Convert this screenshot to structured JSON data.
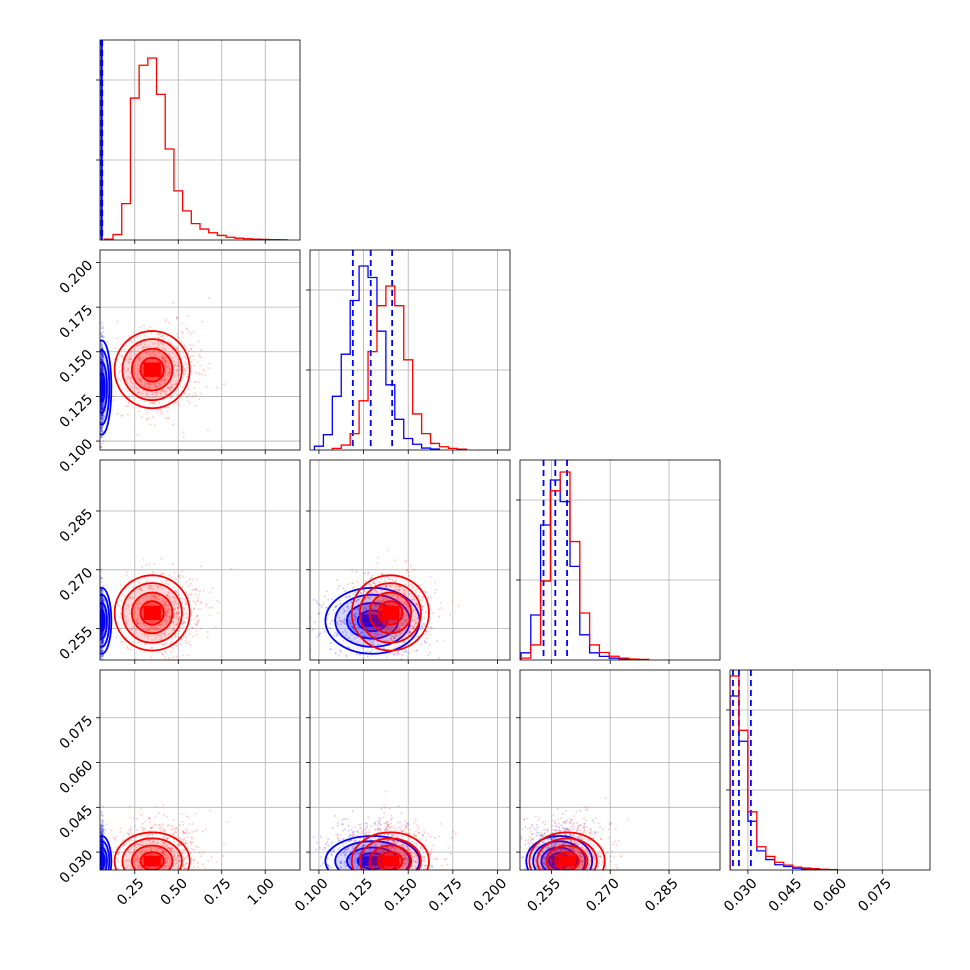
{
  "chart_data": {
    "type": "corner",
    "colors": {
      "blue": "#0000ff",
      "red": "#ff0000"
    },
    "grid": true,
    "parameters": [
      {
        "range": [
          0.05,
          1.2
        ],
        "ticks": [
          "0.25",
          "0.50",
          "0.75",
          "1.00"
        ],
        "tick_values": [
          0.25,
          0.5,
          0.75,
          1.0
        ]
      },
      {
        "range": [
          0.095,
          0.207
        ],
        "ticks": [
          "0.100",
          "0.125",
          "0.150",
          "0.175",
          "0.200"
        ],
        "tick_values": [
          0.1,
          0.125,
          0.15,
          0.175,
          0.2
        ]
      },
      {
        "range": [
          0.247,
          0.298
        ],
        "ticks": [
          "0.255",
          "0.270",
          "0.285"
        ],
        "tick_values": [
          0.255,
          0.27,
          0.285
        ]
      },
      {
        "range": [
          0.024,
          0.091
        ],
        "ticks": [
          "0.030",
          "0.045",
          "0.060",
          "0.075"
        ],
        "tick_values": [
          0.03,
          0.045,
          0.06,
          0.075
        ]
      }
    ],
    "series": [
      {
        "color": "blue",
        "means": [
          0.06,
          0.13,
          0.257,
          0.027
        ],
        "sds": [
          0.004,
          0.011,
          0.0035,
          0.0035
        ],
        "hist": [
          {
            "x": [
              0.06
            ],
            "values": [
              100
            ],
            "peak_ratio": 1.0
          },
          {
            "x": [
              0.1,
              0.105,
              0.11,
              0.115,
              0.12,
              0.125,
              0.13,
              0.135,
              0.14,
              0.145,
              0.15,
              0.155,
              0.16,
              0.165
            ],
            "values": [
              2,
              8,
              28,
              50,
              78,
              96,
              90,
              62,
              34,
              16,
              6,
              3,
              1,
              0.5
            ],
            "peak_ratio": 0.92
          },
          {
            "x": [
              0.2485,
              0.251,
              0.2535,
              0.256,
              0.2585,
              0.261,
              0.2635,
              0.266,
              0.2685,
              0.271,
              0.2735
            ],
            "values": [
              4,
              25,
              75,
              100,
              88,
              52,
              14,
              4,
              2,
              1,
              0.5
            ],
            "peak_ratio": 0.9
          },
          {
            "x": [
              0.0255,
              0.0285,
              0.0315,
              0.0345,
              0.0375,
              0.0405,
              0.0435,
              0.0465,
              0.0495,
              0.0525
            ],
            "values": [
              100,
              74,
              28,
              11,
              6,
              3,
              2,
              1,
              0.5,
              0.3
            ],
            "peak_ratio": 0.87
          }
        ],
        "quantiles": [
          [
            0.057,
            0.06,
            0.063
          ],
          [
            0.119,
            0.129,
            0.141
          ],
          [
            0.253,
            0.256,
            0.259
          ],
          [
            0.025,
            0.027,
            0.031
          ]
        ]
      },
      {
        "color": "red",
        "means": [
          0.35,
          0.14,
          0.259,
          0.027
        ],
        "sds": [
          0.09,
          0.009,
          0.004,
          0.004
        ],
        "hist": [
          {
            "x": [
              0.1,
              0.15,
              0.2,
              0.25,
              0.3,
              0.35,
              0.4,
              0.45,
              0.5,
              0.55,
              0.6,
              0.65,
              0.7,
              0.75,
              0.8,
              0.85,
              0.9,
              0.95,
              1.0,
              1.05,
              1.1
            ],
            "values": [
              0.5,
              3,
              20,
              78,
              96,
              100,
              80,
              50,
              27,
              16,
              9,
              6,
              4,
              2.5,
              1.5,
              1,
              0.7,
              0.5,
              0.3,
              0.2,
              0.1
            ],
            "peak_ratio": 0.91
          },
          {
            "x": [
              0.11,
              0.115,
              0.12,
              0.125,
              0.13,
              0.135,
              0.14,
              0.145,
              0.15,
              0.155,
              0.16,
              0.165,
              0.17,
              0.175,
              0.18
            ],
            "values": [
              1,
              3,
              10,
              30,
              60,
              88,
              100,
              88,
              55,
              22,
              10,
              4,
              2,
              1,
              0.5
            ],
            "peak_ratio": 0.82
          },
          {
            "x": [
              0.2485,
              0.251,
              0.2535,
              0.256,
              0.2585,
              0.261,
              0.2635,
              0.266,
              0.2685,
              0.271,
              0.2735,
              0.276,
              0.2785
            ],
            "values": [
              1,
              8,
              42,
              90,
              100,
              63,
              25,
              8,
              4,
              2,
              1,
              0.5,
              0.3
            ],
            "peak_ratio": 0.94
          },
          {
            "x": [
              0.0255,
              0.0285,
              0.0315,
              0.0345,
              0.0375,
              0.0405,
              0.0435,
              0.0465,
              0.0495,
              0.0525,
              0.0555,
              0.0585
            ],
            "values": [
              100,
              72,
              30,
              12,
              7,
              4,
              2.5,
              1.5,
              1,
              0.7,
              0.4,
              0.2
            ],
            "peak_ratio": 0.97
          }
        ]
      }
    ]
  }
}
